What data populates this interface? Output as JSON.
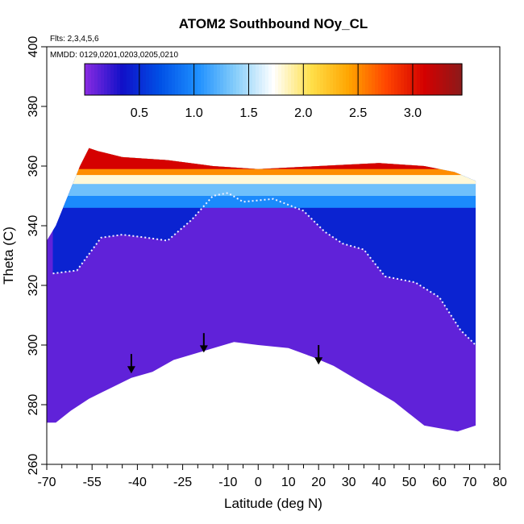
{
  "chart_data": {
    "type": "heatmap",
    "title": "ATOM2 Southbound NOy_CL",
    "flights_label": "Flts: 2,3,4,5,6",
    "dates_label": "MMDD: 0129,0201,0203,0205,0210",
    "xlabel": "Latitude (deg N)",
    "ylabel": "Theta (C)",
    "xlim": [
      -70,
      80
    ],
    "ylim": [
      260,
      400
    ],
    "x_ticks": [
      -70,
      -55,
      -40,
      -25,
      -10,
      0,
      10,
      20,
      30,
      40,
      50,
      60,
      70,
      80
    ],
    "x_tick_labels": [
      "-70",
      "-55",
      "-40",
      "-25",
      "-10",
      "0",
      "10",
      "20",
      "30",
      "40",
      "50",
      "60",
      "70",
      "80"
    ],
    "x_minor_ticks": [
      -65,
      -60,
      -50,
      -45,
      -35,
      -30,
      -20,
      -15,
      -5,
      5,
      15,
      25,
      35,
      45,
      55,
      65,
      75
    ],
    "y_ticks": [
      260,
      280,
      300,
      320,
      340,
      360,
      380,
      400
    ],
    "y_tick_labels": [
      "260",
      "280",
      "300",
      "320",
      "340",
      "360",
      "380",
      "400"
    ],
    "colorbar": {
      "range": [
        0,
        3.45
      ],
      "ticks": [
        0.5,
        1.0,
        1.5,
        2.0,
        2.5,
        3.0
      ],
      "tick_labels": [
        "0.5",
        "1.0",
        "1.5",
        "2.0",
        "2.5",
        "3.0"
      ],
      "divisions": [
        0.5,
        1.0,
        1.5,
        2.0,
        2.5,
        3.0
      ],
      "colors": [
        "#8a2be2",
        "#1010c8",
        "#0050e6",
        "#1e90ff",
        "#87cefa",
        "#ffffff",
        "#ffe04a",
        "#ffa500",
        "#ff4500",
        "#d40000",
        "#8b1a1a"
      ]
    },
    "domain_top": [
      [
        -70,
        335
      ],
      [
        -67,
        340
      ],
      [
        -63,
        350
      ],
      [
        -59,
        360
      ],
      [
        -56,
        366
      ],
      [
        -53,
        365
      ],
      [
        -45,
        363
      ],
      [
        -30,
        362
      ],
      [
        -15,
        360
      ],
      [
        0,
        359
      ],
      [
        20,
        360
      ],
      [
        40,
        361
      ],
      [
        55,
        360
      ],
      [
        65,
        358
      ],
      [
        72,
        355
      ]
    ],
    "domain_bottom": [
      [
        72,
        273
      ],
      [
        66,
        271
      ],
      [
        55,
        273
      ],
      [
        45,
        281
      ],
      [
        35,
        287
      ],
      [
        25,
        293
      ],
      [
        18,
        296
      ],
      [
        10,
        299
      ],
      [
        0,
        300
      ],
      [
        -8,
        301
      ],
      [
        -18,
        298
      ],
      [
        -28,
        295
      ],
      [
        -35,
        291
      ],
      [
        -42,
        289
      ],
      [
        -50,
        285
      ],
      [
        -56,
        282
      ],
      [
        -62,
        278
      ],
      [
        -67,
        274
      ],
      [
        -70,
        274
      ]
    ],
    "tropopause": [
      [
        -68,
        324
      ],
      [
        -60,
        325
      ],
      [
        -52,
        336
      ],
      [
        -45,
        337
      ],
      [
        -37,
        336
      ],
      [
        -30,
        335
      ],
      [
        -22,
        342
      ],
      [
        -15,
        350
      ],
      [
        -10,
        351
      ],
      [
        -5,
        348
      ],
      [
        5,
        349
      ],
      [
        15,
        345
      ],
      [
        22,
        338
      ],
      [
        28,
        334
      ],
      [
        35,
        332
      ],
      [
        42,
        323
      ],
      [
        52,
        321
      ],
      [
        60,
        316
      ],
      [
        67,
        305
      ],
      [
        72,
        300
      ]
    ],
    "colored_bands": [
      {
        "theta": 346,
        "value": 1.0
      },
      {
        "theta": 350,
        "value": 1.3
      },
      {
        "theta": 354,
        "value": 1.8
      },
      {
        "theta": 357,
        "value": 2.5
      },
      {
        "theta": 359,
        "value": 3.1
      }
    ],
    "arrows": [
      {
        "lat": -42,
        "theta": 297
      },
      {
        "lat": -18,
        "theta": 304
      },
      {
        "lat": 20,
        "theta": 300
      }
    ]
  }
}
